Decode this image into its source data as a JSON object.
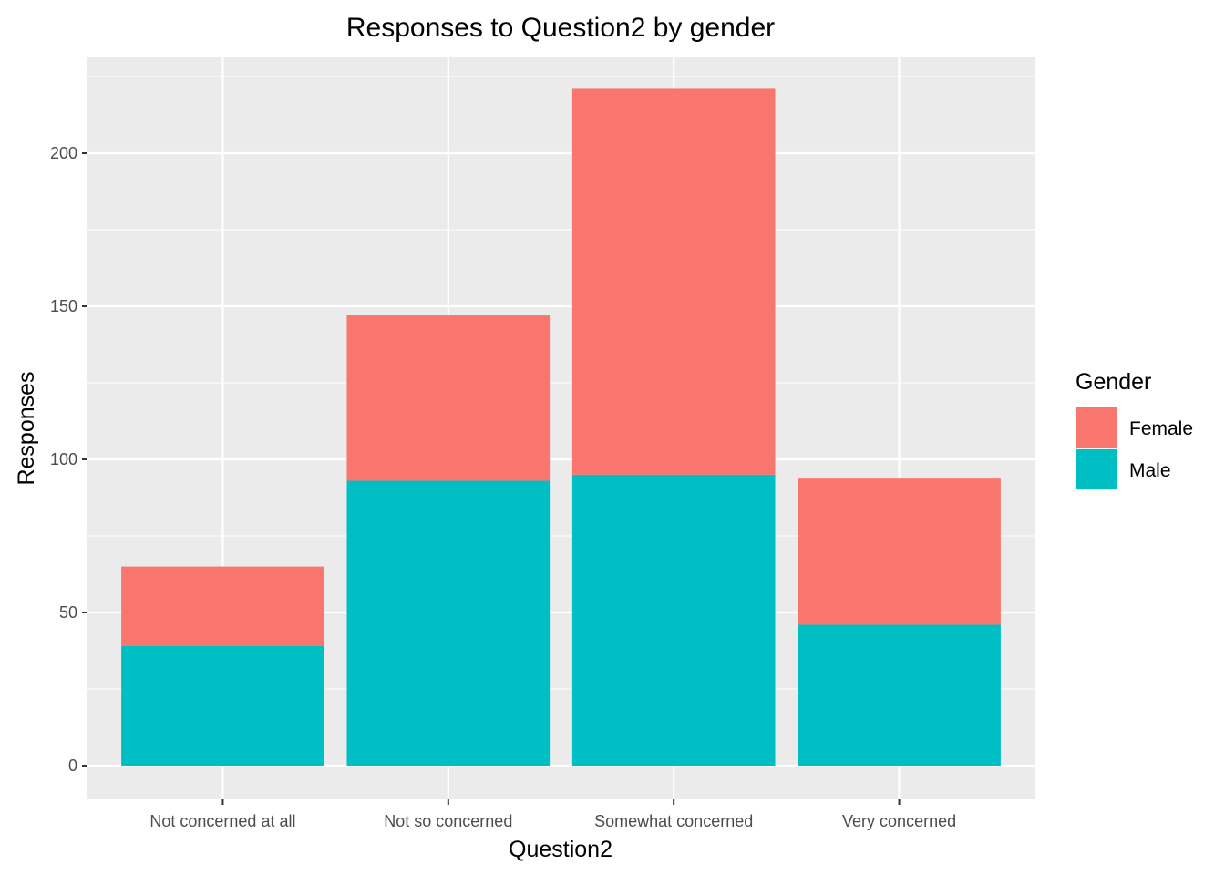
{
  "chart_data": {
    "type": "bar",
    "stacked": true,
    "title": "Responses to Question2 by gender",
    "xlabel": "Question2",
    "ylabel": "Responses",
    "categories": [
      "Not concerned at all",
      "Not so concerned",
      "Somewhat concerned",
      "Very concerned"
    ],
    "series": [
      {
        "name": "Female",
        "color": "#F8766D",
        "values": [
          26,
          54,
          126,
          48
        ]
      },
      {
        "name": "Male",
        "color": "#00BFC4",
        "values": [
          39,
          93,
          95,
          46
        ]
      }
    ],
    "ylim": [
      -10,
      225
    ],
    "yticks": [
      0,
      50,
      100,
      150,
      200
    ],
    "grid": true,
    "panel_background": "#EBEBEB",
    "grid_color": "#FFFFFF",
    "legend": {
      "title": "Gender",
      "placement": "right",
      "entries": [
        "Female",
        "Male"
      ]
    }
  }
}
